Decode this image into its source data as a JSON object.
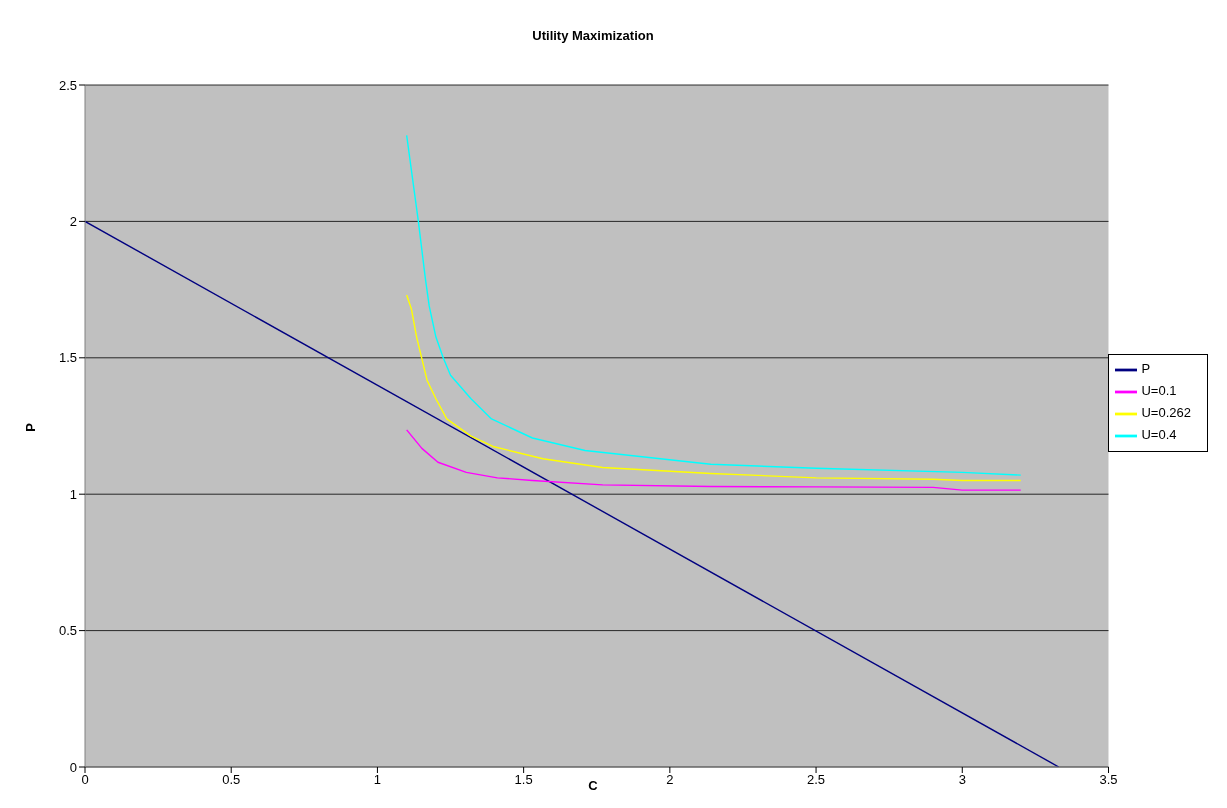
{
  "chart_data": {
    "type": "line",
    "title": "Utility Maximization",
    "xlabel": "C",
    "ylabel": "P",
    "xlim": [
      0,
      3.5
    ],
    "xticks": [
      0,
      0.5,
      1,
      1.5,
      2,
      2.5,
      3,
      3.5
    ],
    "ylim": [
      0,
      2.5
    ],
    "yticks": [
      0,
      0.5,
      1,
      1.5,
      2,
      2.5
    ],
    "grid": "y",
    "legend": "right",
    "marker": "none",
    "line_style": "solid",
    "series": [
      {
        "name": "P",
        "color": "#000080",
        "x": [
          0,
          3.33
        ],
        "values": [
          2,
          0
        ]
      },
      {
        "name": "U=0.1",
        "color": "#ff00ff",
        "x": [
          1.1,
          1.152,
          1.207,
          1.304,
          1.41,
          1.53,
          1.77,
          2.14,
          2.5,
          2.9,
          3.0,
          3.2
        ],
        "values": [
          1.236,
          1.168,
          1.117,
          1.08,
          1.06,
          1.05,
          1.034,
          1.028,
          1.027,
          1.025,
          1.015,
          1.015
        ]
      },
      {
        "name": "U=0.262",
        "color": "#ffff00",
        "x": [
          1.1,
          1.116,
          1.134,
          1.17,
          1.2,
          1.237,
          1.32,
          1.395,
          1.566,
          1.77,
          2.14,
          2.5,
          2.9,
          3.0,
          3.2
        ],
        "values": [
          1.73,
          1.68,
          1.576,
          1.417,
          1.35,
          1.276,
          1.213,
          1.175,
          1.13,
          1.098,
          1.076,
          1.06,
          1.055,
          1.05,
          1.05
        ]
      },
      {
        "name": "U=0.4",
        "color": "#00ffff",
        "x": [
          1.1,
          1.14,
          1.164,
          1.177,
          1.2,
          1.225,
          1.25,
          1.32,
          1.39,
          1.53,
          1.71,
          2.14,
          2.5,
          3.0,
          3.2
        ],
        "values": [
          2.315,
          2.0,
          1.79,
          1.69,
          1.576,
          1.5,
          1.436,
          1.35,
          1.276,
          1.206,
          1.16,
          1.11,
          1.095,
          1.08,
          1.07
        ]
      }
    ]
  }
}
